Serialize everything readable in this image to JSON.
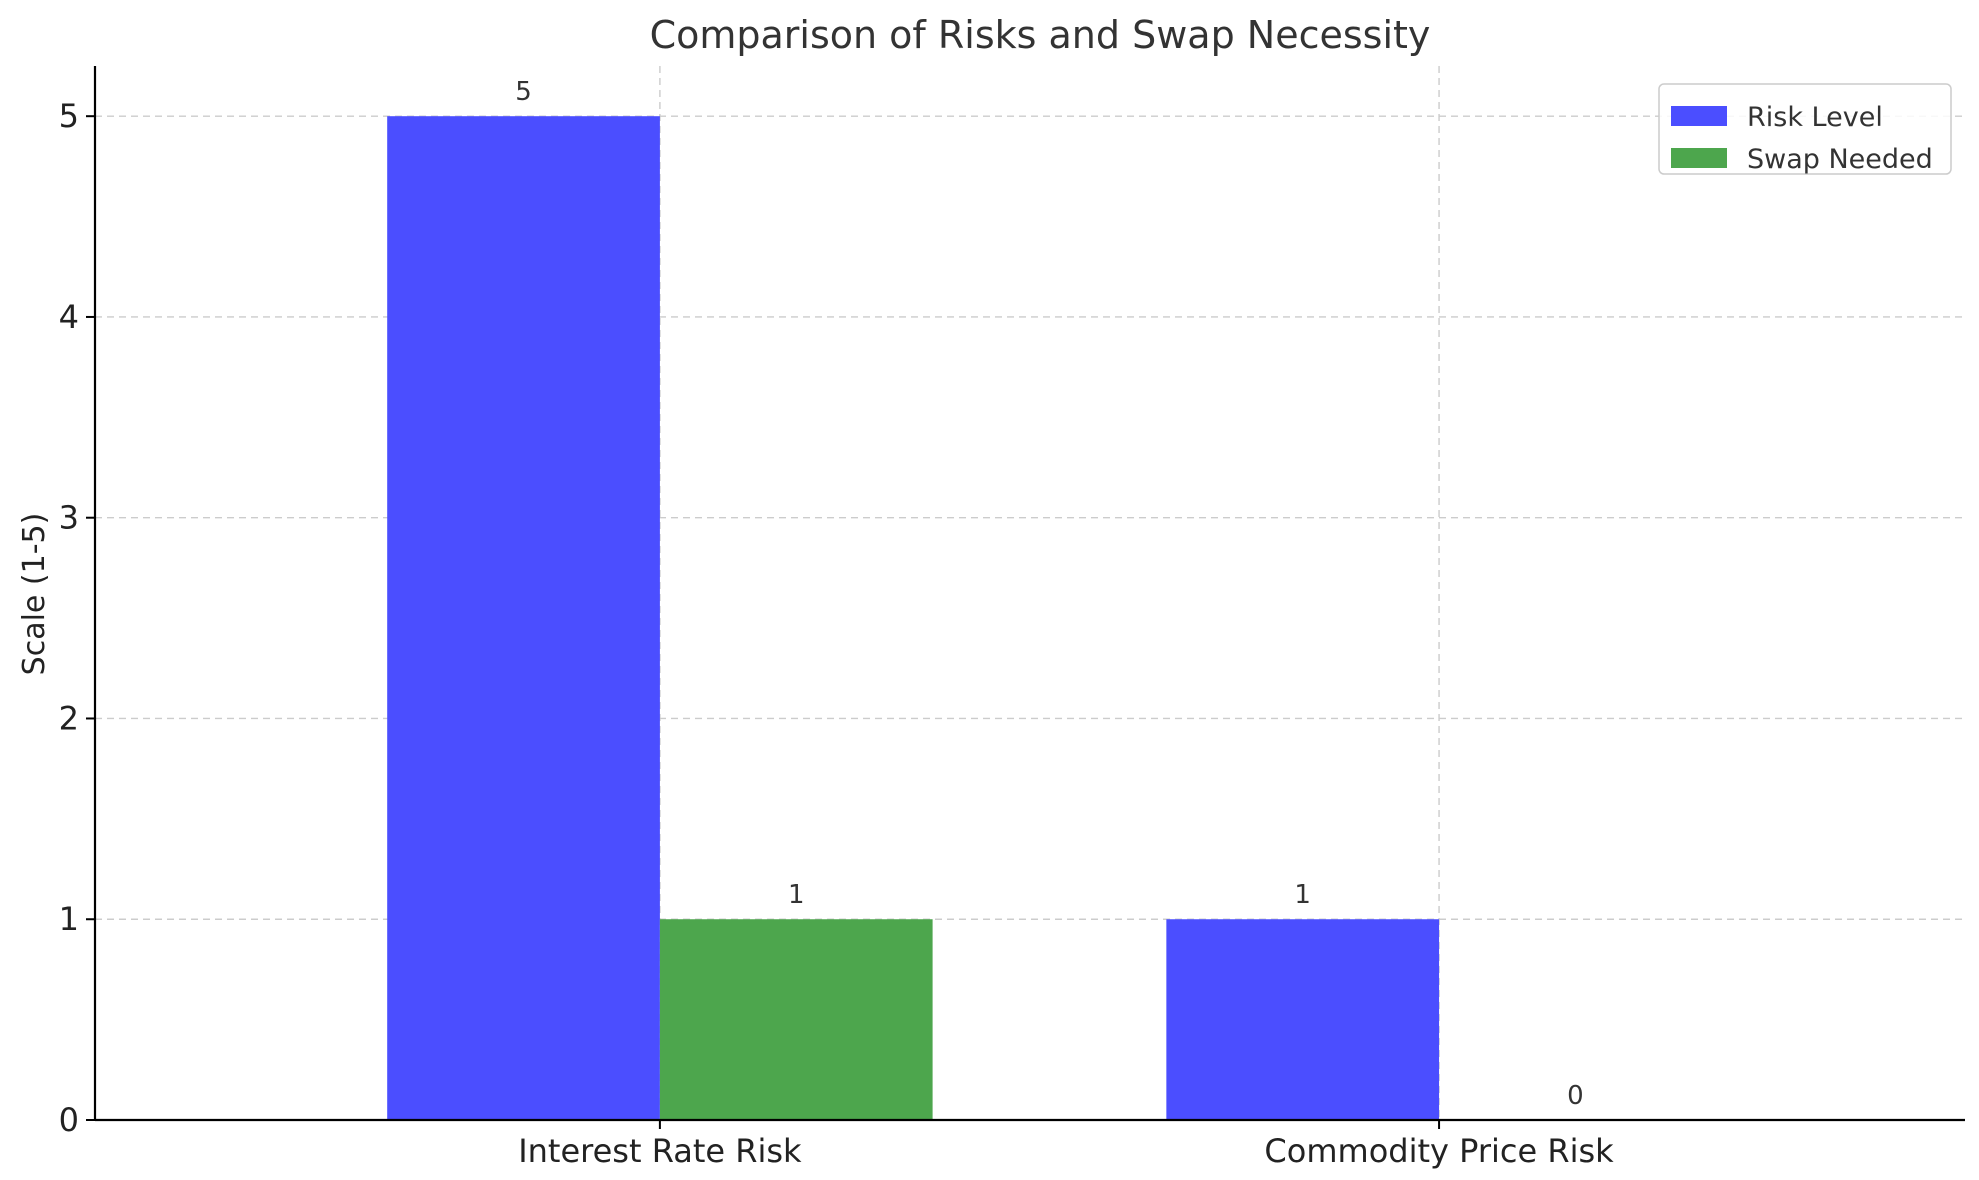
{
  "chart_data": {
    "type": "bar",
    "title": "Comparison of Risks and Swap Necessity",
    "xlabel": "",
    "ylabel": "Scale (1-5)",
    "categories": [
      "Interest Rate Risk",
      "Commodity Price Risk"
    ],
    "series": [
      {
        "name": "Risk Level",
        "values": [
          5,
          1
        ],
        "color": "#4b4eff"
      },
      {
        "name": "Swap Needed",
        "values": [
          1,
          0
        ],
        "color": "#4da64d"
      }
    ],
    "ylim": [
      0,
      5.25
    ],
    "yticks": [
      0,
      1,
      2,
      3,
      4,
      5
    ],
    "grid": true,
    "legend_position": "top-right"
  }
}
